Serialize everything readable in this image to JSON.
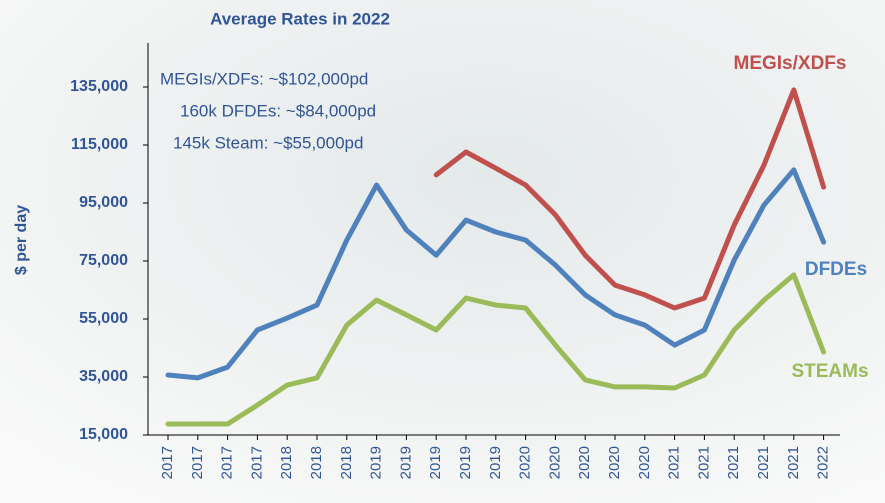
{
  "chart_data": {
    "type": "line",
    "title": "Average Rates in 2022",
    "y_label": "$ per day",
    "annotations": [
      "MEGIs/XDFs: ~$102,000pd",
      "160k DFDEs: ~$84,000pd",
      "145k Steam: ~$55,000pd"
    ],
    "categories": [
      "2017",
      "2017",
      "2017",
      "2017",
      "2018",
      "2018",
      "2018",
      "2019",
      "2019",
      "2019",
      "2019",
      "2019",
      "2020",
      "2020",
      "2020",
      "2020",
      "2020",
      "2021",
      "2021",
      "2021",
      "2021",
      "2021",
      "2022"
    ],
    "series": [
      {
        "name": "MEGIs/XDFs",
        "color": "#c0504d",
        "values": [
          null,
          null,
          null,
          null,
          null,
          null,
          null,
          null,
          null,
          104700,
          112600,
          107000,
          101200,
          90900,
          77000,
          66700,
          63300,
          58800,
          62200,
          87400,
          108100,
          134000,
          100500
        ]
      },
      {
        "name": "DFDEs",
        "color": "#4f81bd",
        "values": [
          35700,
          34700,
          38400,
          51200,
          55300,
          59800,
          82200,
          101200,
          85700,
          77000,
          89100,
          85000,
          82200,
          73600,
          63300,
          56400,
          52900,
          46000,
          51200,
          75300,
          94300,
          106400,
          81500
        ]
      },
      {
        "name": "STEAMs",
        "color": "#9bbb59",
        "values": [
          18800,
          18800,
          18800,
          25300,
          32200,
          34700,
          52900,
          61500,
          56400,
          51200,
          62200,
          59800,
          58800,
          46000,
          34000,
          31600,
          31600,
          31200,
          35700,
          51200,
          61500,
          70200,
          43600
        ]
      }
    ],
    "ylim": [
      15000,
      150000
    ],
    "yticks": [
      {
        "value": 15000,
        "label": "15,000"
      },
      {
        "value": 35000,
        "label": "35,000"
      },
      {
        "value": 55000,
        "label": "55,000"
      },
      {
        "value": 75000,
        "label": "75,000"
      },
      {
        "value": 95000,
        "label": "95,000"
      },
      {
        "value": 115000,
        "label": "115,000"
      },
      {
        "value": 135000,
        "label": "135,000"
      }
    ]
  }
}
